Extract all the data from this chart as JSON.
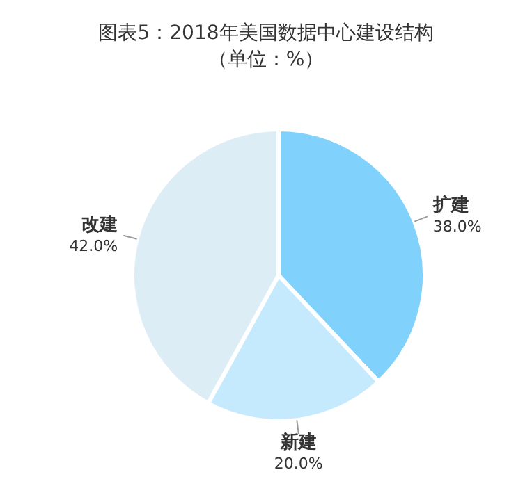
{
  "chart_data": {
    "type": "pie",
    "title": "图表5：2018年美国数据中心建设结构（单位：%）",
    "categories": [
      "扩建",
      "新建",
      "改建"
    ],
    "values": [
      38,
      20,
      42
    ],
    "value_labels": [
      "38.0%",
      "20.0%",
      "42.0%"
    ],
    "colors": [
      "#80d2fc",
      "#c6eafd",
      "#dcedf5"
    ]
  }
}
